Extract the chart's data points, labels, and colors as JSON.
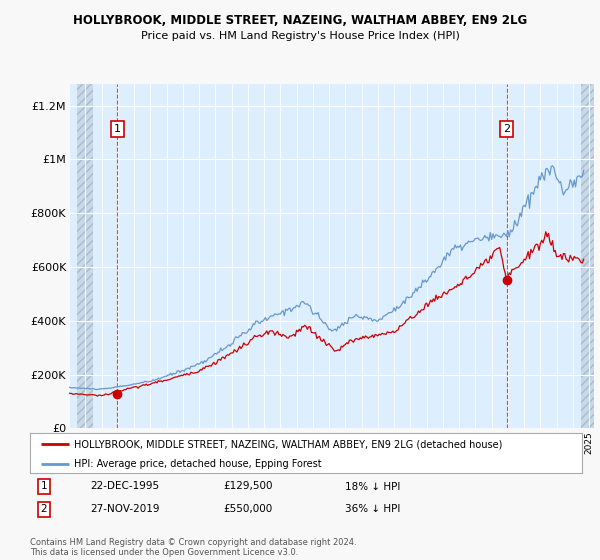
{
  "title": "HOLLYBROOK, MIDDLE STREET, NAZEING, WALTHAM ABBEY, EN9 2LG",
  "subtitle": "Price paid vs. HM Land Registry's House Price Index (HPI)",
  "ylabel_ticks": [
    "£0",
    "£200K",
    "£400K",
    "£600K",
    "£800K",
    "£1M",
    "£1.2M"
  ],
  "ytick_vals": [
    0,
    200000,
    400000,
    600000,
    800000,
    1000000,
    1200000
  ],
  "ylim": [
    0,
    1280000
  ],
  "xlim_start": 1993.5,
  "xlim_end": 2025.3,
  "background_color": "#f8f8f8",
  "plot_bg_color": "#ddeeff",
  "hatch_color": "#c8d8e8",
  "grid_color": "#ffffff",
  "sale_color": "#cc0000",
  "hpi_color": "#6699cc",
  "sale1_x": 1995.97,
  "sale1_y": 129500,
  "sale2_x": 2019.92,
  "sale2_y": 550000,
  "legend_sale_label": "HOLLYBROOK, MIDDLE STREET, NAZEING, WALTHAM ABBEY, EN9 2LG (detached house)",
  "legend_hpi_label": "HPI: Average price, detached house, Epping Forest",
  "note1_label": "1",
  "note1_date": "22-DEC-1995",
  "note1_price": "£129,500",
  "note1_hpi": "18% ↓ HPI",
  "note2_label": "2",
  "note2_date": "27-NOV-2019",
  "note2_price": "£550,000",
  "note2_hpi": "36% ↓ HPI",
  "copyright": "Contains HM Land Registry data © Crown copyright and database right 2024.\nThis data is licensed under the Open Government Licence v3.0."
}
